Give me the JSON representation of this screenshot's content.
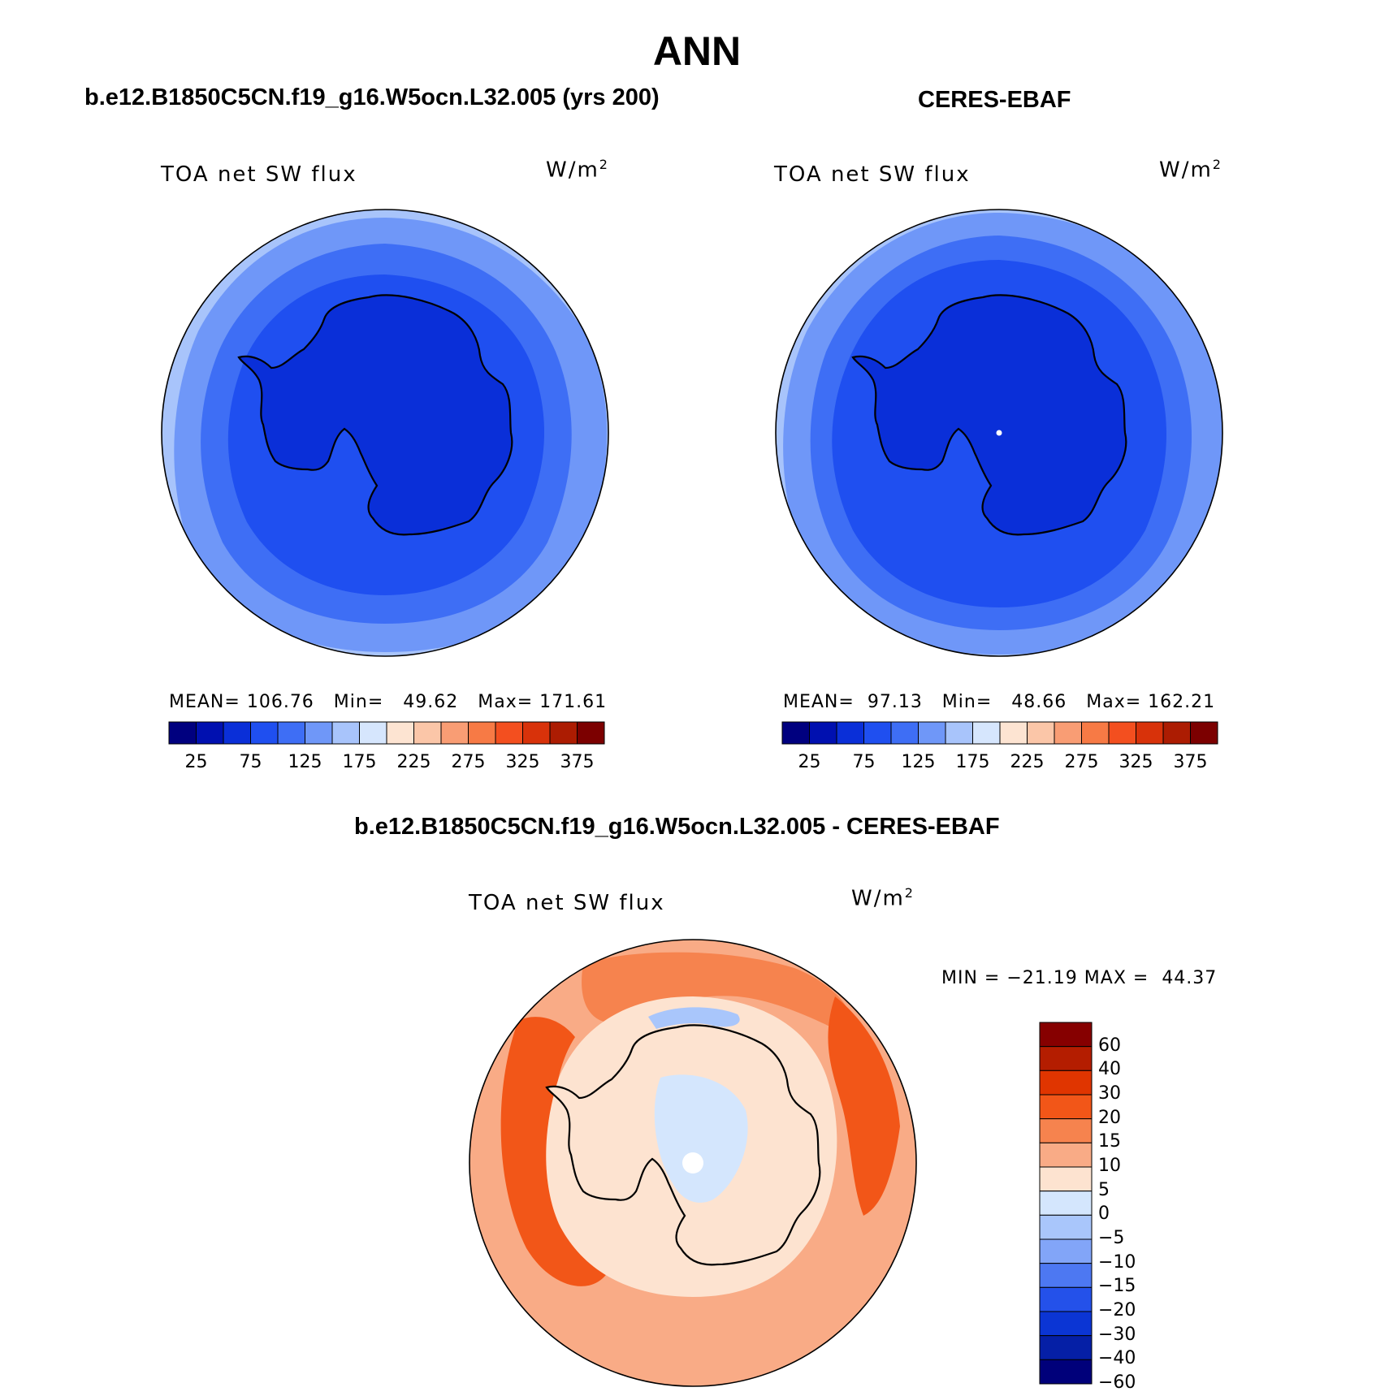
{
  "page": {
    "title": "ANN"
  },
  "panels": {
    "model": {
      "header": "b.e12.B1850C5CN.f19_g16.W5ocn.L32.005 (yrs 200)",
      "variable": "TOA net SW flux",
      "units_base": "W/m",
      "units_exp": "2",
      "stats": {
        "mean_label": "MEAN=",
        "mean": "106.76",
        "min_label": "Min=",
        "min": "49.62",
        "max_label": "Max=",
        "max": "171.61"
      }
    },
    "obs": {
      "header": "CERES-EBAF",
      "variable": "TOA net SW flux",
      "units_base": "W/m",
      "units_exp": "2",
      "stats": {
        "mean_label": "MEAN=",
        "mean": "97.13",
        "min_label": "Min=",
        "min": "48.66",
        "max_label": "Max=",
        "max": "162.21"
      }
    },
    "diff": {
      "header": "b.e12.B1850C5CN.f19_g16.W5ocn.L32.005 - CERES-EBAF",
      "variable": "TOA net SW flux",
      "units_base": "W/m",
      "units_exp": "2",
      "stats": {
        "min_label": "MIN =",
        "min": "−21.19",
        "max_label": "MAX =",
        "max": "44.37"
      }
    }
  },
  "colorbars": {
    "abs": {
      "colors": [
        "#00007f",
        "#0010b0",
        "#0a2fd8",
        "#1f4ff0",
        "#3e6ef5",
        "#6f97f8",
        "#a8c4fb",
        "#d6e6fd",
        "#fde4d2",
        "#fbc6a8",
        "#f99d74",
        "#f77a45",
        "#f34f1f",
        "#d8320a",
        "#ac1c02",
        "#7c0000"
      ],
      "ticks": [
        "25",
        "75",
        "125",
        "175",
        "225",
        "275",
        "325",
        "375"
      ]
    },
    "diff": {
      "colors_top_to_bottom": [
        "#860000",
        "#b41d00",
        "#e03500",
        "#f25618",
        "#f6834e",
        "#f9ab86",
        "#fde3d0",
        "#d4e6fd",
        "#a9c6fb",
        "#82a5f8",
        "#4d78f2",
        "#2451ea",
        "#0b35d4",
        "#051fa6",
        "#00007a"
      ],
      "levels": [
        "60",
        "40",
        "30",
        "20",
        "15",
        "10",
        "5",
        "0",
        "−5",
        "−10",
        "−15",
        "−20",
        "−30",
        "−40",
        "−60"
      ]
    }
  },
  "map_colors": {
    "land": "#0a2fd8",
    "coast": "#000000",
    "pole_marker": "#ffffff"
  }
}
